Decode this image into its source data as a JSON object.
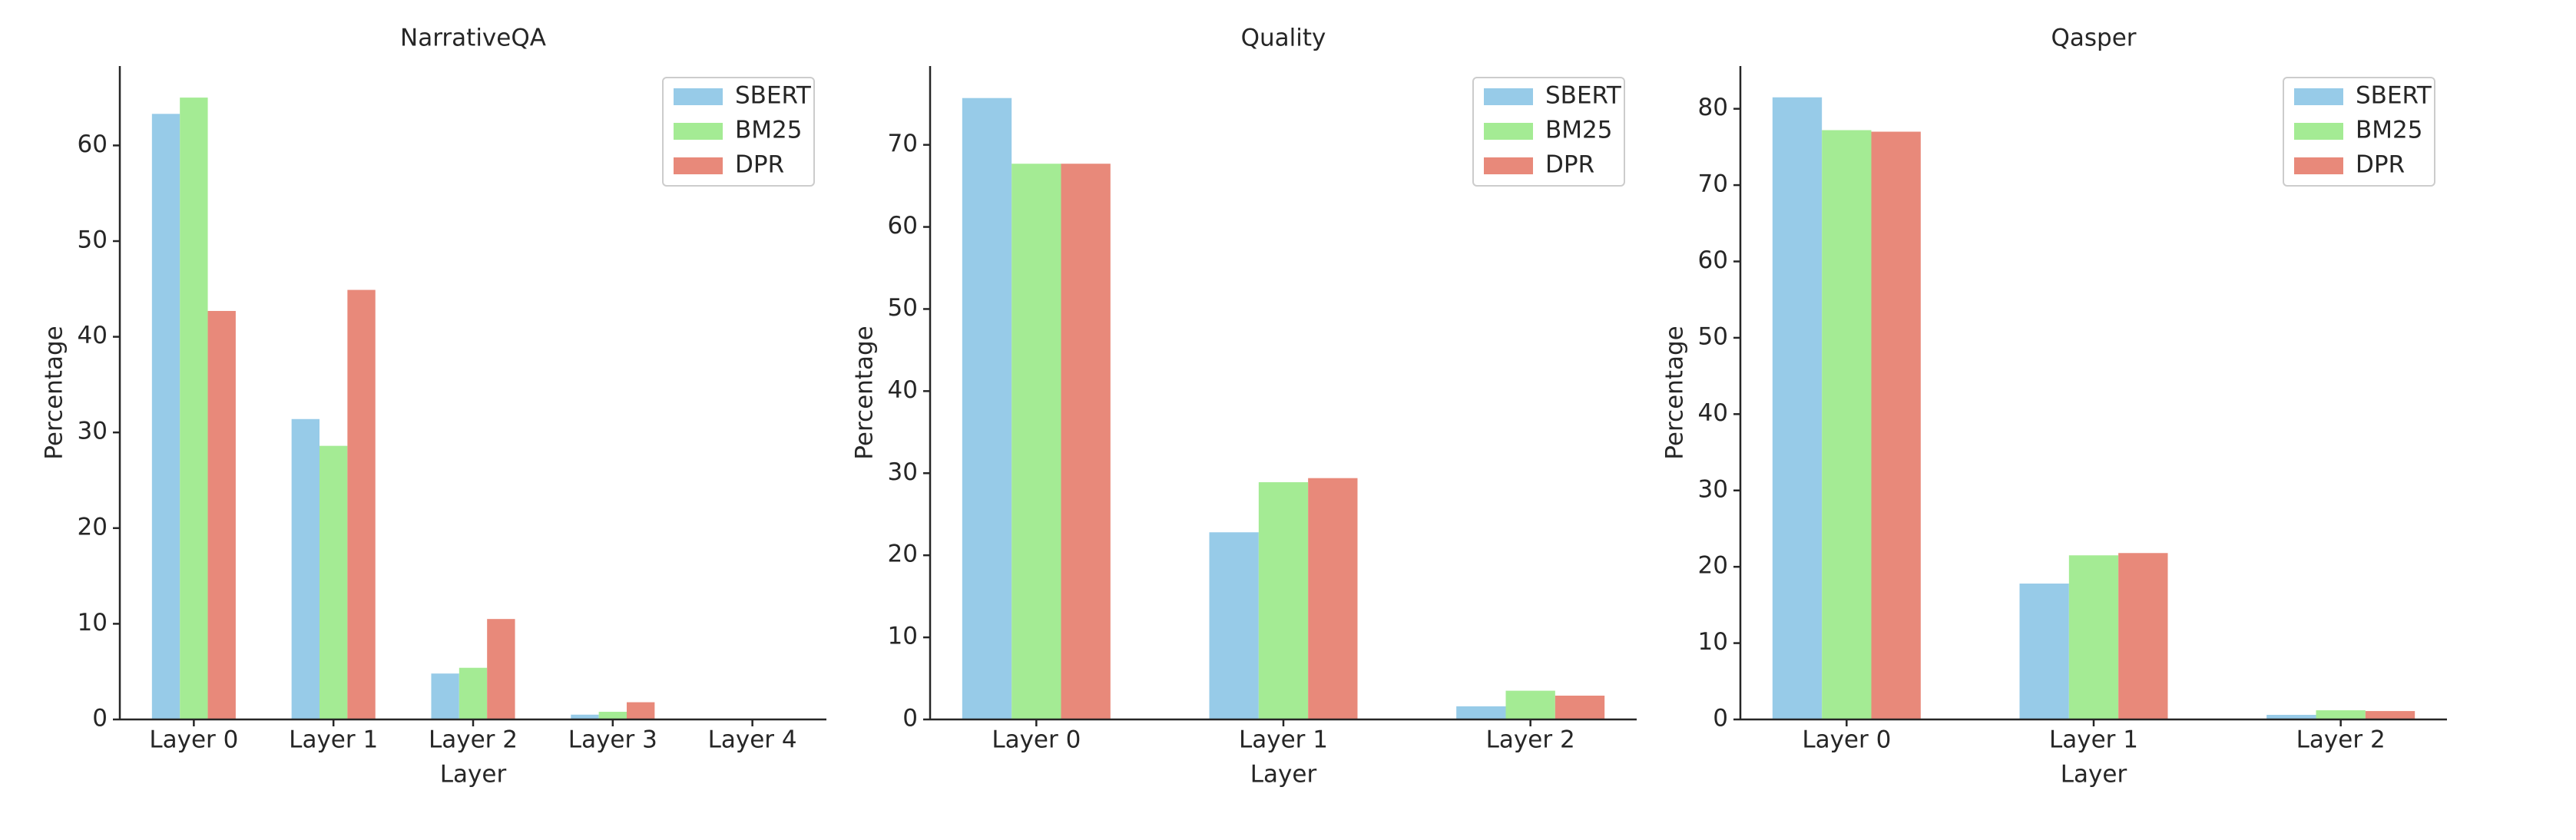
{
  "chart_data": [
    {
      "type": "bar",
      "title": "NarrativeQA",
      "xlabel": "Layer",
      "ylabel": "Percentage",
      "categories": [
        "Layer 0",
        "Layer 1",
        "Layer 2",
        "Layer 3",
        "Layer 4"
      ],
      "series": [
        {
          "name": "SBERT",
          "color": "#97cbe8",
          "values": [
            63.3,
            31.4,
            4.8,
            0.5,
            0
          ]
        },
        {
          "name": "BM25",
          "color": "#a4eb94",
          "values": [
            65.0,
            28.6,
            5.4,
            0.8,
            0
          ]
        },
        {
          "name": "DPR",
          "color": "#e8897a",
          "values": [
            42.7,
            44.9,
            10.5,
            1.8,
            0
          ]
        }
      ],
      "ylim": [
        0,
        68.3
      ],
      "yticks": [
        0,
        10,
        20,
        30,
        40,
        50,
        60
      ],
      "legend": "upper right"
    },
    {
      "type": "bar",
      "title": "Quality",
      "xlabel": "Layer",
      "ylabel": "Percentage",
      "categories": [
        "Layer 0",
        "Layer 1",
        "Layer 2"
      ],
      "series": [
        {
          "name": "SBERT",
          "color": "#97cbe8",
          "values": [
            75.7,
            22.8,
            1.6
          ]
        },
        {
          "name": "BM25",
          "color": "#a4eb94",
          "values": [
            67.7,
            28.9,
            3.5
          ]
        },
        {
          "name": "DPR",
          "color": "#e8897a",
          "values": [
            67.7,
            29.4,
            2.9
          ]
        }
      ],
      "ylim": [
        0,
        79.6
      ],
      "yticks": [
        0,
        10,
        20,
        30,
        40,
        50,
        60,
        70
      ],
      "legend": "upper right"
    },
    {
      "type": "bar",
      "title": "Qasper",
      "xlabel": "Layer",
      "ylabel": "Percentage",
      "categories": [
        "Layer 0",
        "Layer 1",
        "Layer 2"
      ],
      "series": [
        {
          "name": "SBERT",
          "color": "#97cbe8",
          "values": [
            81.5,
            17.8,
            0.6
          ]
        },
        {
          "name": "BM25",
          "color": "#a4eb94",
          "values": [
            77.2,
            21.5,
            1.2
          ]
        },
        {
          "name": "DPR",
          "color": "#e8897a",
          "values": [
            77.0,
            21.8,
            1.1
          ]
        }
      ],
      "ylim": [
        0,
        85.6
      ],
      "yticks": [
        0,
        10,
        20,
        30,
        40,
        50,
        60,
        70,
        80
      ],
      "legend": "upper right"
    }
  ]
}
